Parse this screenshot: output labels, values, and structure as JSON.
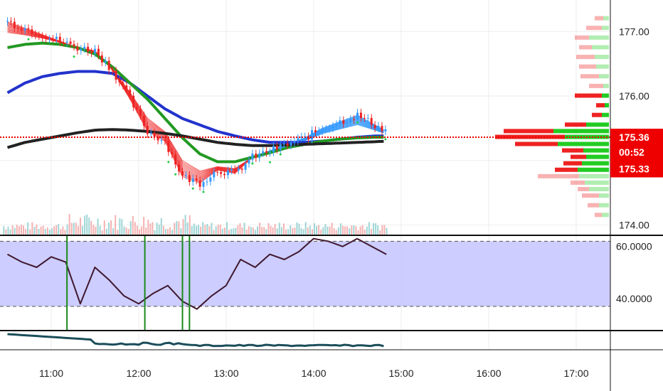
{
  "chart_data": {
    "type": "line",
    "colors": {
      "up": "#22cc22",
      "down": "#ee2222",
      "ema_blue": "#2233cc",
      "ema_green": "#229922",
      "ema_black": "#222222",
      "ribbon_red": "#ee2222",
      "ribbon_blue": "#3399ff",
      "rsi_fill": "#c8c8ff",
      "rsi_line": "#2b1b3a",
      "rsi_low": "#7a1010",
      "bottom_line": "#1b4d5a",
      "marker_green": "#1a8a1a",
      "price_line": "#ee0000",
      "badge": "#ee0000"
    },
    "x_ticks": [
      "11:00",
      "12:00",
      "13:00",
      "14:00",
      "15:00",
      "16:00",
      "17:00"
    ],
    "price_axis": {
      "ticks": [
        "174.00",
        "176.00",
        "177.00"
      ],
      "range": [
        173.85,
        177.4
      ]
    },
    "price_badges": [
      {
        "label": "175.36",
        "value": 175.36
      },
      {
        "label": "00:52",
        "value": 175.13
      },
      {
        "label": "175.33",
        "value": 174.87
      }
    ],
    "current_price": 175.36,
    "price_series": {
      "times": [
        10.5,
        10.7,
        10.9,
        11.1,
        11.3,
        11.5,
        11.7,
        11.9,
        12.1,
        12.3,
        12.5,
        12.7,
        12.9,
        13.1,
        13.3,
        13.5,
        13.7,
        13.9,
        14.1,
        14.3,
        14.5,
        14.7,
        14.83
      ],
      "close": [
        177.15,
        177.05,
        176.95,
        176.85,
        176.75,
        176.7,
        176.4,
        175.95,
        175.45,
        175.3,
        174.75,
        174.65,
        174.85,
        174.8,
        175.05,
        175.15,
        175.25,
        175.35,
        175.5,
        175.6,
        175.7,
        175.55,
        175.45
      ]
    },
    "ema_blue": [
      176.05,
      176.2,
      176.3,
      176.35,
      176.38,
      176.38,
      176.35,
      176.2,
      176.0,
      175.8,
      175.65,
      175.55,
      175.45,
      175.38,
      175.32,
      175.28,
      175.28,
      175.28,
      175.3,
      175.33,
      175.36,
      175.38,
      175.38
    ],
    "ema_green": [
      176.75,
      176.8,
      176.82,
      176.8,
      176.75,
      176.65,
      176.45,
      176.2,
      175.95,
      175.65,
      175.35,
      175.1,
      174.98,
      174.98,
      175.05,
      175.12,
      175.2,
      175.25,
      175.3,
      175.33,
      175.35,
      175.36,
      175.36
    ],
    "ema_black": [
      175.2,
      175.28,
      175.33,
      175.38,
      175.43,
      175.47,
      175.48,
      175.47,
      175.45,
      175.42,
      175.38,
      175.33,
      175.28,
      175.25,
      175.23,
      175.23,
      175.24,
      175.25,
      175.26,
      175.27,
      175.28,
      175.29,
      175.3
    ],
    "rsi_panel": {
      "ticks": [
        "40.0000",
        "60.0000"
      ],
      "upper_band": 62,
      "lower_band": 37,
      "range": [
        28,
        64
      ],
      "values": [
        57,
        54,
        52,
        56,
        54,
        38,
        52,
        47,
        41,
        38,
        42,
        45,
        39,
        36,
        41,
        45,
        55,
        52,
        57,
        55,
        58,
        63,
        62,
        60,
        63,
        60,
        57
      ],
      "signal_times": [
        11.18,
        12.07,
        12.5,
        12.58
      ]
    },
    "volume_profile": [
      {
        "price": 177.2,
        "buy": 8,
        "sell": 12
      },
      {
        "price": 177.05,
        "buy": 10,
        "sell": 22
      },
      {
        "price": 176.9,
        "buy": 28,
        "sell": 20
      },
      {
        "price": 176.75,
        "buy": 24,
        "sell": 18
      },
      {
        "price": 176.6,
        "buy": 20,
        "sell": 26
      },
      {
        "price": 176.45,
        "buy": 18,
        "sell": 24
      },
      {
        "price": 176.3,
        "buy": 14,
        "sell": 26
      },
      {
        "price": 176.15,
        "buy": 8,
        "sell": 20
      },
      {
        "price": 176.0,
        "buy": 10,
        "sell": 38
      },
      {
        "price": 175.85,
        "buy": 6,
        "sell": 12
      },
      {
        "price": 175.7,
        "buy": 10,
        "sell": 14
      },
      {
        "price": 175.55,
        "buy": 32,
        "sell": 30
      },
      {
        "price": 175.45,
        "buy": 78,
        "sell": 70
      },
      {
        "price": 175.36,
        "buy": 62,
        "sell": 98
      },
      {
        "price": 175.25,
        "buy": 72,
        "sell": 60
      },
      {
        "price": 175.15,
        "buy": 36,
        "sell": 30
      },
      {
        "price": 175.05,
        "buy": 32,
        "sell": 22
      },
      {
        "price": 174.95,
        "buy": 38,
        "sell": 26
      },
      {
        "price": 174.85,
        "buy": 44,
        "sell": 32
      },
      {
        "price": 174.75,
        "buy": 42,
        "sell": 58
      },
      {
        "price": 174.65,
        "buy": 34,
        "sell": 20
      },
      {
        "price": 174.55,
        "buy": 28,
        "sell": 16
      },
      {
        "price": 174.45,
        "buy": 14,
        "sell": 24
      },
      {
        "price": 174.3,
        "buy": 14,
        "sell": 16
      },
      {
        "price": 174.15,
        "buy": 10,
        "sell": 10
      }
    ]
  }
}
